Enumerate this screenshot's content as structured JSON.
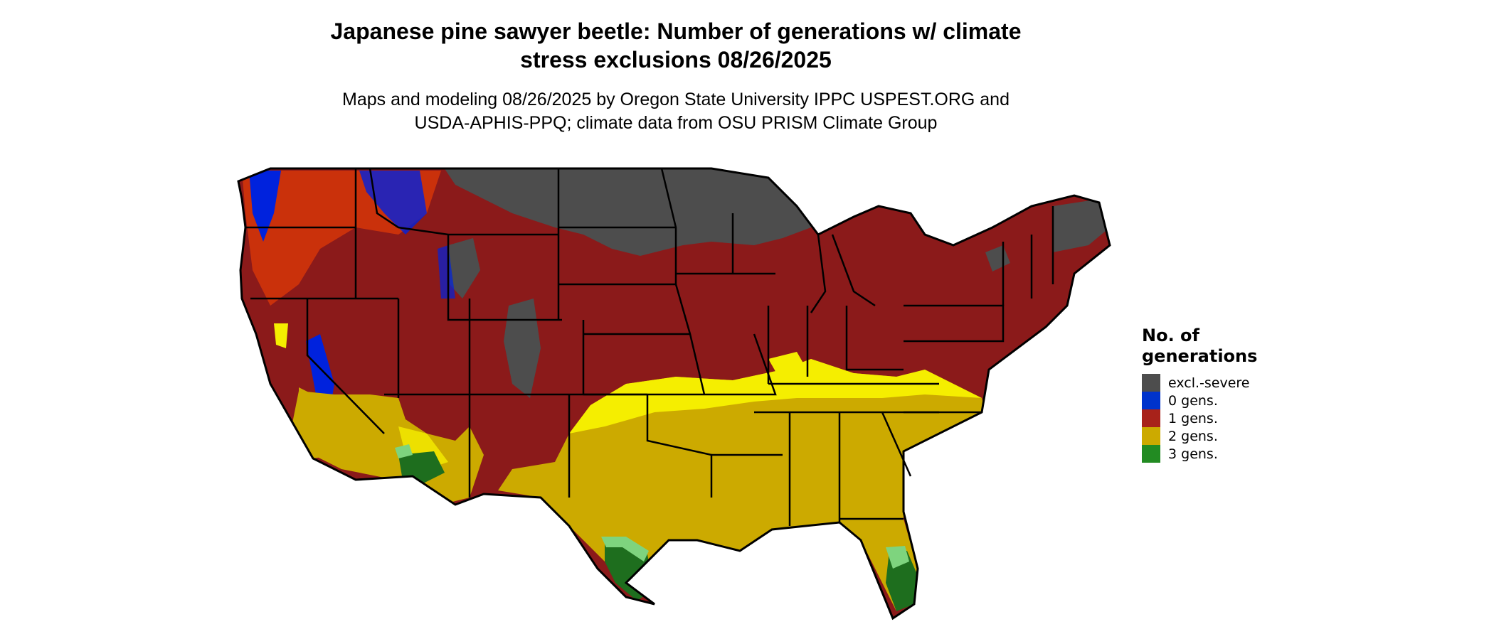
{
  "title_line1": "Japanese pine sawyer beetle: Number of generations w/ climate",
  "title_line2": "stress exclusions 08/26/2025",
  "subtitle_line1": "Maps and modeling 08/26/2025 by Oregon State University IPPC USPEST.ORG and",
  "subtitle_line2": "USDA-APHIS-PPQ; climate data from OSU PRISM Climate Group",
  "legend": {
    "title": "No. of generations",
    "items": [
      {
        "label": "excl.-severe",
        "color": "#4d4d4d"
      },
      {
        "label": "0 gens.",
        "color": "#0033cc"
      },
      {
        "label": "1 gens.",
        "color": "#8b1a1a"
      },
      {
        "label": "2 gens.",
        "color": "#ccaa00"
      },
      {
        "label": "3 gens.",
        "color": "#228b22"
      }
    ]
  },
  "colors": {
    "excl": "#4d4d4d",
    "zero": "#0022dd",
    "one": "#8b1a1a",
    "one_orange": "#ff4500",
    "two": "#ccaa00",
    "two_yellow": "#f5ee00",
    "three": "#1e6e1e",
    "three_light": "#7ed47e",
    "border": "#000000"
  }
}
